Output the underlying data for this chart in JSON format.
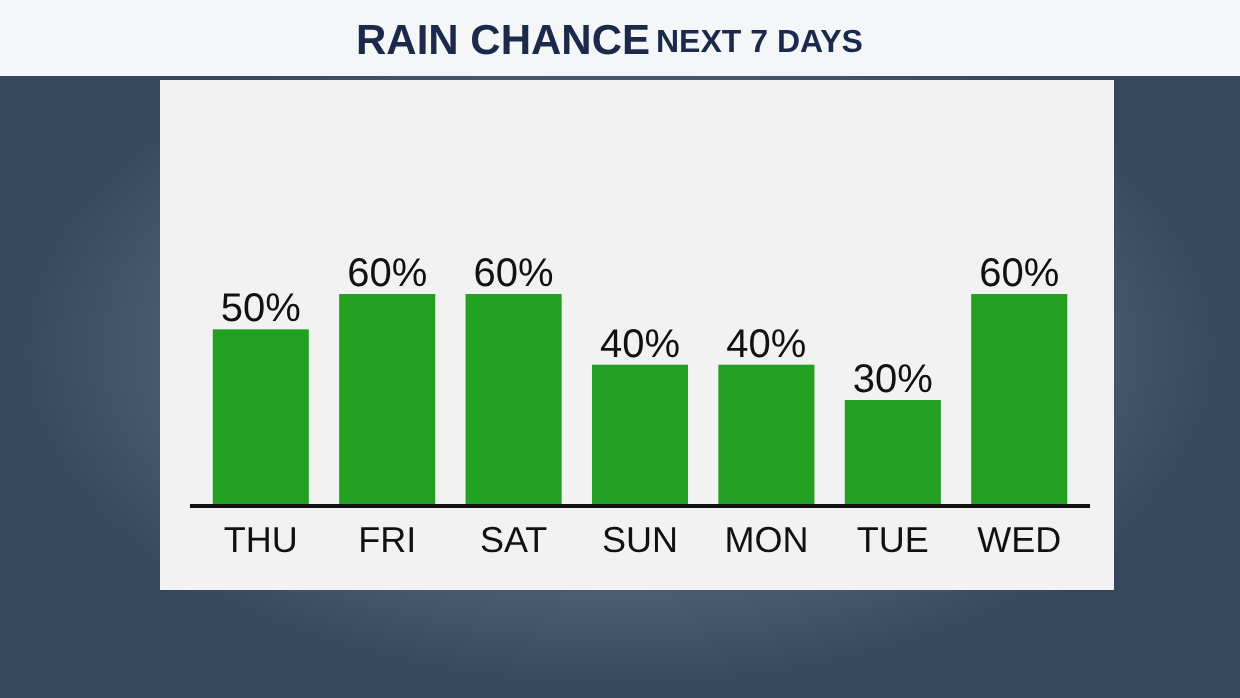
{
  "chart_data": {
    "type": "bar",
    "title": "RAIN CHANCE",
    "subtitle": "NEXT 7 DAYS",
    "categories": [
      "THU",
      "FRI",
      "SAT",
      "SUN",
      "MON",
      "TUE",
      "WED"
    ],
    "values": [
      50,
      60,
      60,
      40,
      40,
      30,
      60
    ],
    "value_labels": [
      "50%",
      "60%",
      "60%",
      "40%",
      "40%",
      "30%",
      "60%"
    ],
    "color": "#22a022"
  }
}
